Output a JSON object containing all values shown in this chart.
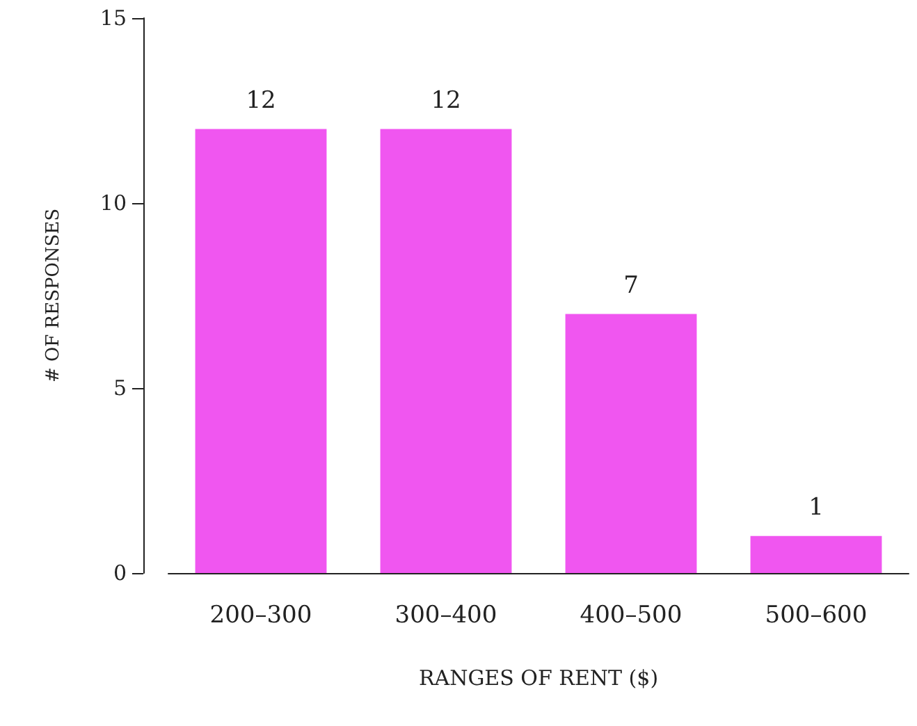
{
  "chart_data": {
    "type": "bar",
    "xlabel": "RANGES OF RENT ($)",
    "ylabel": "# OF RESPONSES",
    "categories": [
      "200–300",
      "300–400",
      "400–500",
      "500–600"
    ],
    "values": [
      12,
      12,
      7,
      1
    ],
    "color": "#f056f0",
    "ylim": [
      0,
      15
    ],
    "yticks": [
      0,
      5,
      10,
      15
    ],
    "grid": false,
    "data_labels": true
  }
}
